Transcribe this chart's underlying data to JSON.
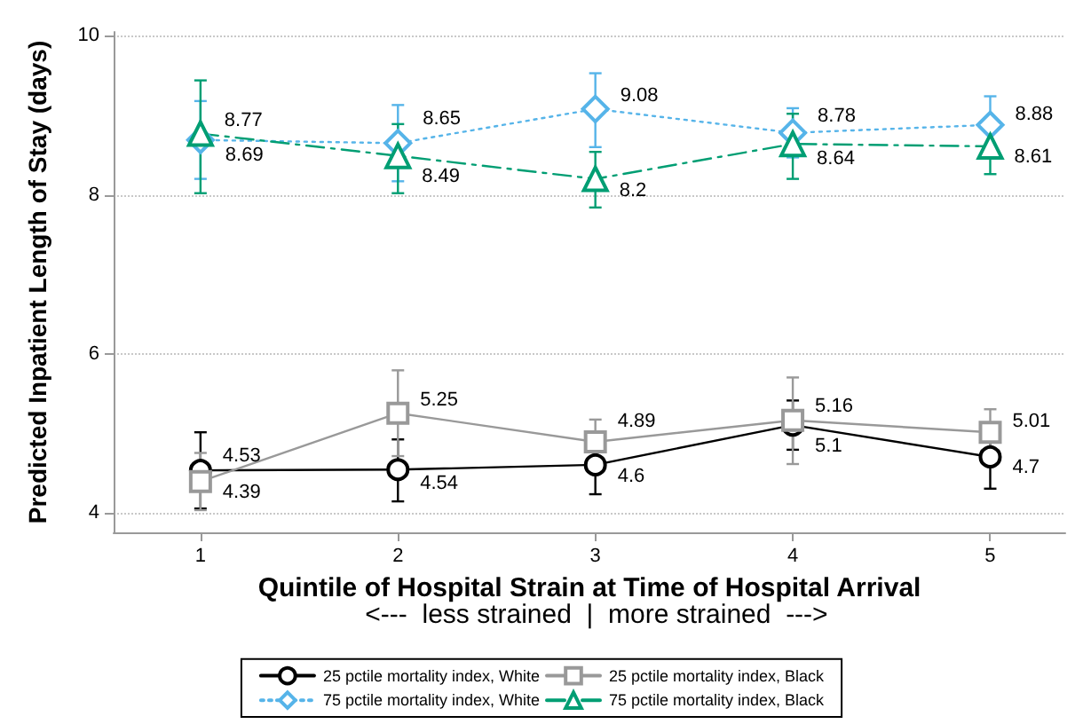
{
  "chart_data": {
    "type": "line",
    "xlabel": "Quintile of Hospital Strain at Time of Hospital Arrival",
    "ylabel": "Predicted Inpatient Length of Stay (days)",
    "annotations": [
      "<---  less strained  |  more strained  --->"
    ],
    "x": [
      1,
      2,
      3,
      4,
      5
    ],
    "xlim": [
      0.56,
      5.38
    ],
    "xticks": [
      1,
      2,
      3,
      4,
      5
    ],
    "ylim": [
      3.75,
      10.05
    ],
    "yticks": [
      4,
      6,
      8,
      10
    ],
    "grid": "y",
    "legend": "bottom",
    "data_labels": true,
    "series": [
      {
        "name": "25 pctile mortality index, White",
        "color": "#000000",
        "values": [
          4.53,
          4.54,
          4.6,
          5.1,
          4.7
        ],
        "errors": [
          [
            4.05,
            5.01
          ],
          [
            4.14,
            4.92
          ],
          [
            4.23,
            4.94
          ],
          [
            4.79,
            5.41
          ],
          [
            4.3,
            5.08
          ]
        ],
        "marker": "circle",
        "line_style": "solid"
      },
      {
        "name": "75 pctile mortality index, White",
        "color": "#56b4e9",
        "values": [
          8.69,
          8.65,
          9.08,
          8.78,
          8.88
        ],
        "errors": [
          [
            8.2,
            9.18
          ],
          [
            8.17,
            9.13
          ],
          [
            8.6,
            9.53
          ],
          [
            8.47,
            9.09
          ],
          [
            8.52,
            9.24
          ]
        ],
        "marker": "diamond",
        "line_style": "dotted"
      },
      {
        "name": "25 pctile mortality index, Black",
        "color": "#999999",
        "values": [
          4.39,
          5.25,
          4.89,
          5.16,
          5.01
        ],
        "errors": [
          [
            4.03,
            4.75
          ],
          [
            4.71,
            5.79
          ],
          [
            4.89,
            5.17
          ],
          [
            4.61,
            5.7
          ],
          [
            4.72,
            5.3
          ]
        ],
        "marker": "square",
        "line_style": "solid"
      },
      {
        "name": "75 pctile mortality index, Black",
        "color": "#009e73",
        "values": [
          8.77,
          8.49,
          8.2,
          8.64,
          8.61
        ],
        "errors": [
          [
            8.02,
            9.44
          ],
          [
            8.02,
            8.89
          ],
          [
            7.84,
            8.54
          ],
          [
            8.2,
            9.02
          ],
          [
            8.26,
            8.87
          ]
        ],
        "marker": "triangle",
        "line_style": "dashed"
      }
    ]
  }
}
